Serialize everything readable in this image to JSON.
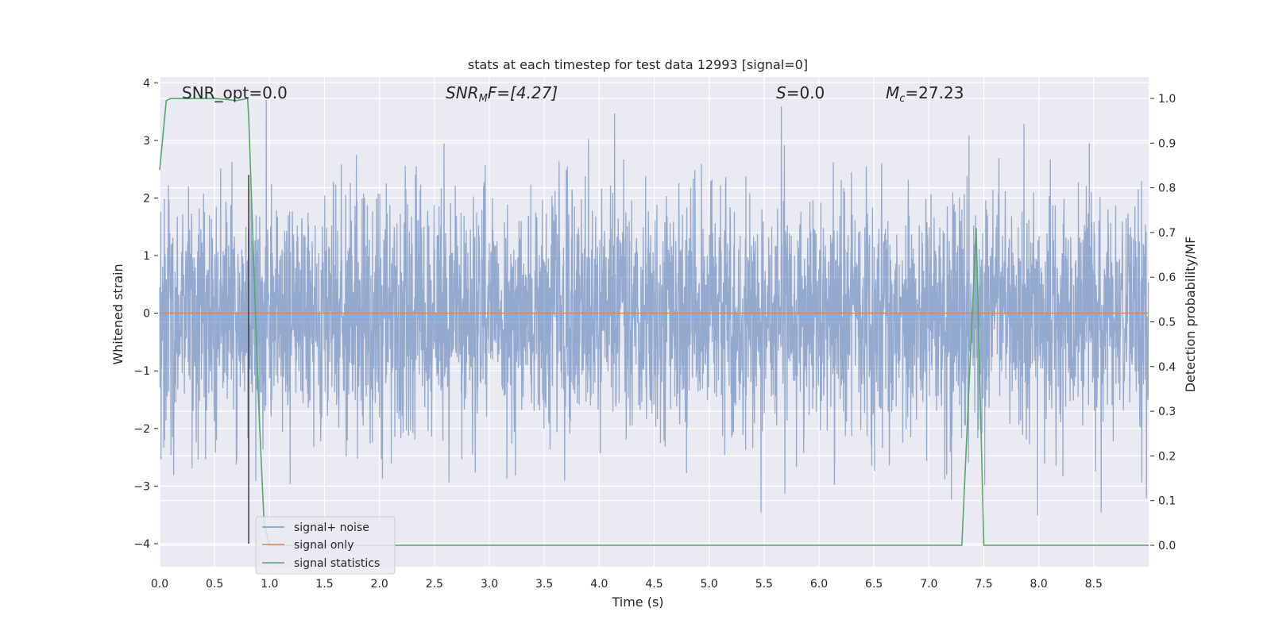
{
  "chart_data": {
    "type": "line",
    "title": "stats at each timestep for test data 12993 [signal=0]",
    "xlabel": "Time (s)",
    "ylabel": "Whitened strain",
    "ylabel_right": "Detection probability/MF",
    "xlim": [
      0.0,
      9.0
    ],
    "ylim": [
      -4.4,
      4.1
    ],
    "ylim_right": [
      -0.048,
      1.048
    ],
    "xticks": [
      0.0,
      0.5,
      1.0,
      1.5,
      2.0,
      2.5,
      3.0,
      3.5,
      4.0,
      4.5,
      5.0,
      5.5,
      6.0,
      6.5,
      7.0,
      7.5,
      8.0,
      8.5
    ],
    "xtick_labels": [
      "0.0",
      "0.5",
      "1.0",
      "1.5",
      "2.0",
      "2.5",
      "3.0",
      "3.5",
      "4.0",
      "4.5",
      "5.0",
      "5.5",
      "6.0",
      "6.5",
      "7.0",
      "7.5",
      "8.0",
      "8.5"
    ],
    "yticks": [
      4,
      3,
      2,
      1,
      0,
      -1,
      -2,
      -3,
      -4
    ],
    "ytick_labels": [
      "4",
      "3",
      "2",
      "1",
      "0",
      "−1",
      "−2",
      "−3",
      "−4"
    ],
    "yticks_right": [
      1.0,
      0.9,
      0.8,
      0.7,
      0.6,
      0.5,
      0.4,
      0.3,
      0.2,
      0.1,
      0.0
    ],
    "ytick_labels_right": [
      "1.0",
      "0.9",
      "0.8",
      "0.7",
      "0.6",
      "0.5",
      "0.4",
      "0.3",
      "0.2",
      "0.1",
      "0.0"
    ],
    "grid": true,
    "legend_position": "lower-left",
    "annotations": {
      "snr_opt": "SNR_opt=0.0",
      "snr_mf_base": "SNR",
      "snr_mf_sub": "M",
      "snr_mf_rest": "F=[4.27]",
      "s_base": "S",
      "s_rest": "=0.0",
      "mc_base": "M",
      "mc_sub": "c",
      "mc_rest": "=27.23"
    },
    "marker_line": {
      "x": 0.81,
      "y_from": -4.0,
      "y_to": 2.4,
      "color": "#333333"
    },
    "series": [
      {
        "name": "signal+ noise",
        "axis": "left",
        "color": "#4c72b0",
        "opacity": 0.55,
        "noise": {
          "duration": 9.0,
          "sample_rate": 400,
          "sigma": 1.05,
          "clip": [
            -4.0,
            3.8
          ],
          "seed": 12993
        }
      },
      {
        "name": "signal only",
        "axis": "left",
        "color": "#dd8452",
        "x": [
          0.0,
          9.0
        ],
        "y": [
          0.0,
          0.0
        ]
      },
      {
        "name": "signal statistics",
        "axis": "right",
        "color": "#55a868",
        "x": [
          0.0,
          0.06,
          0.1,
          0.2,
          0.3,
          0.5,
          0.6,
          0.7,
          0.8,
          0.81,
          0.9,
          0.95,
          1.0,
          2.0,
          3.0,
          4.0,
          5.0,
          6.0,
          7.0,
          7.3,
          7.43,
          7.5,
          8.0,
          9.0
        ],
        "y": [
          0.84,
          0.995,
          1.0,
          1.0,
          1.0,
          1.0,
          0.998,
          0.995,
          1.0,
          0.96,
          0.32,
          0.05,
          0.0,
          0.0,
          0.0,
          0.0,
          0.0,
          0.0,
          0.0,
          0.0,
          0.71,
          0.0,
          0.0,
          0.0
        ]
      }
    ]
  }
}
